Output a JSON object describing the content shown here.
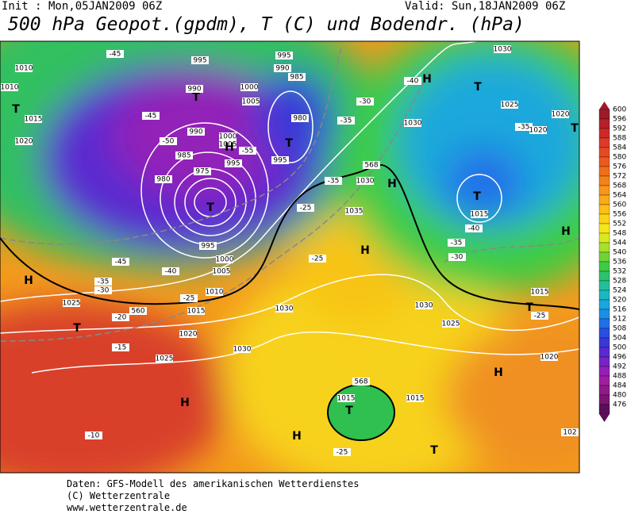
{
  "header": {
    "init": "Init : Mon,05JAN2009 06Z",
    "valid": "Valid: Sun,18JAN2009 06Z",
    "title": "500 hPa Geopot.(gpdm), T (C) und Bodendr. (hPa)"
  },
  "map": {
    "labels": [
      "1010",
      "1010",
      "T",
      "1015",
      "1020",
      "-45",
      "995",
      "995",
      "990",
      "985",
      "T",
      "1000",
      "1005",
      "990",
      "-45",
      "990",
      "-50",
      "1000",
      "1005",
      "H",
      "-55",
      "985",
      "995",
      "980",
      "T",
      "995",
      "980",
      "975",
      "T",
      "-35",
      "-30",
      "-40",
      "H",
      "1030",
      "T",
      "1025",
      "-35",
      "1020",
      "1020",
      "T",
      "1030",
      "568",
      "1030",
      "-35",
      "H",
      "-25",
      "1035",
      "T",
      "1015",
      "-40",
      "H",
      "-35",
      "-30",
      "H",
      "-25",
      "-45",
      "-40",
      "-35",
      "-30",
      "H",
      "-25",
      "1010",
      "1000",
      "1005",
      "995",
      "1025",
      "560",
      "-20",
      "1015",
      "1030",
      "1030",
      "1025",
      "1015",
      "T",
      "-25",
      "T",
      "1020",
      "-15",
      "1025",
      "1030",
      "1020",
      "H",
      "H",
      "1015",
      "568",
      "1015",
      "T",
      "-10",
      "H",
      "-25",
      "T",
      "102"
    ]
  },
  "legend": {
    "values": [
      600,
      596,
      592,
      588,
      584,
      580,
      576,
      572,
      568,
      564,
      560,
      556,
      552,
      548,
      544,
      540,
      536,
      532,
      528,
      524,
      520,
      516,
      512,
      508,
      504,
      500,
      496,
      492,
      488,
      484,
      480,
      476
    ],
    "colors": [
      "#9e1a2b",
      "#b8202a",
      "#cc2a2a",
      "#dd3a2a",
      "#e64a22",
      "#ec5a1e",
      "#f06e1a",
      "#f4821a",
      "#f7961a",
      "#f9aa18",
      "#fbbf16",
      "#fbd416",
      "#f5e61a",
      "#d7ea1e",
      "#a8e02a",
      "#6fd435",
      "#3ccc45",
      "#2ac46a",
      "#22c09a",
      "#1ab8c0",
      "#18a8dc",
      "#1a8fe6",
      "#2070e8",
      "#2850e0",
      "#3a38d8",
      "#5a2ad0",
      "#7a22c8",
      "#9220b8",
      "#a01ea0",
      "#901a88",
      "#7a1672",
      "#5a1058"
    ]
  },
  "footer": {
    "lines": [
      "Daten: GFS-Modell des amerikanischen Wetterdienstes",
      "(C) Wetterzentrale",
      "www.wetterzentrale.de"
    ]
  }
}
